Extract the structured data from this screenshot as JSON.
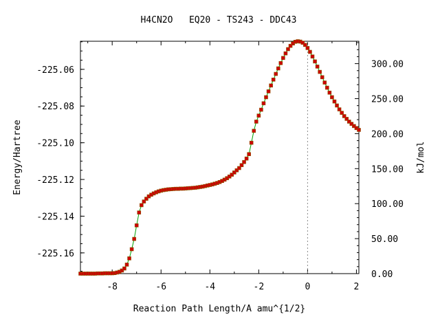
{
  "chart_data": {
    "type": "line",
    "title": "H4CN2O   EQ20 - TS243 - DDC43",
    "xlabel": "Reaction Path Length/A amu^{1/2}",
    "ylabel": "Energy/Hartree",
    "y2label": "kJ/mol",
    "xlim": [
      -9.3,
      2.1
    ],
    "ylim": [
      -225.1713,
      -225.0447
    ],
    "y2lim": [
      0,
      332
    ],
    "x_ticks": [
      "-8",
      "-6",
      "-4",
      "-2",
      "0",
      "2"
    ],
    "x_tick_values": [
      -8,
      -6,
      -4,
      -2,
      0,
      2
    ],
    "y_ticks": [
      "-225.06",
      "-225.08",
      "-225.10",
      "-225.12",
      "-225.14",
      "-225.16"
    ],
    "y_tick_values": [
      -225.06,
      -225.08,
      -225.1,
      -225.12,
      -225.14,
      -225.16
    ],
    "y2_ticks": [
      "300.00",
      "250.00",
      "200.00",
      "150.00",
      "100.00",
      "50.00",
      "0.00"
    ],
    "y2_tick_values": [
      300,
      250,
      200,
      150,
      100,
      50,
      0
    ],
    "vline_x": 0,
    "grid": false,
    "line_color": "#00a000",
    "marker_color": "#cc0000",
    "marker_edge": "#8a5a00",
    "series": [
      {
        "x": [
          -9.3,
          -9.2,
          -9.1,
          -9.0,
          -8.9,
          -8.8,
          -8.7,
          -8.6,
          -8.5,
          -8.4,
          -8.3,
          -8.2,
          -8.1,
          -8.0,
          -7.9,
          -7.8,
          -7.7,
          -7.6,
          -7.5,
          -7.4,
          -7.3,
          -7.2,
          -7.1,
          -7.0,
          -6.9,
          -6.8,
          -6.7,
          -6.6,
          -6.5,
          -6.4,
          -6.3,
          -6.2,
          -6.1,
          -6.0,
          -5.9,
          -5.8,
          -5.7,
          -5.6,
          -5.5,
          -5.4,
          -5.3,
          -5.2,
          -5.1,
          -5.0,
          -4.9,
          -4.8,
          -4.7,
          -4.6,
          -4.5,
          -4.4,
          -4.3,
          -4.2,
          -4.1,
          -4.0,
          -3.9,
          -3.8,
          -3.7,
          -3.6,
          -3.5,
          -3.4,
          -3.3,
          -3.2,
          -3.1,
          -3.0,
          -2.9,
          -2.8,
          -2.7,
          -2.6,
          -2.5,
          -2.4,
          -2.3,
          -2.2,
          -2.1,
          -2.0,
          -1.9,
          -1.8,
          -1.7,
          -1.6,
          -1.5,
          -1.4,
          -1.3,
          -1.2,
          -1.1,
          -1.0,
          -0.9,
          -0.8,
          -0.7,
          -0.6,
          -0.5,
          -0.4,
          -0.3,
          -0.2,
          -0.1,
          0.0,
          0.1,
          0.2,
          0.3,
          0.4,
          0.5,
          0.6,
          0.7,
          0.8,
          0.9,
          1.0,
          1.1,
          1.2,
          1.3,
          1.4,
          1.5,
          1.6,
          1.7,
          1.8,
          1.9,
          2.0,
          2.1
        ],
        "y": [
          -225.1713,
          -225.1713,
          -225.1713,
          -225.1713,
          -225.1713,
          -225.1713,
          -225.1713,
          -225.1712,
          -225.1712,
          -225.1712,
          -225.1711,
          -225.1711,
          -225.1711,
          -225.1711,
          -225.171,
          -225.1707,
          -225.1703,
          -225.1696,
          -225.1685,
          -225.1664,
          -225.163,
          -225.158,
          -225.1524,
          -225.145,
          -225.138,
          -225.134,
          -225.132,
          -225.1305,
          -225.1292,
          -225.1283,
          -225.1276,
          -225.127,
          -225.1265,
          -225.1261,
          -225.1258,
          -225.1256,
          -225.1254,
          -225.1253,
          -225.1252,
          -225.1251,
          -225.1251,
          -225.125,
          -225.125,
          -225.1249,
          -225.1248,
          -225.1247,
          -225.1246,
          -225.1245,
          -225.1243,
          -225.1241,
          -225.1239,
          -225.1236,
          -225.1233,
          -225.123,
          -225.1227,
          -225.1223,
          -225.1219,
          -225.1214,
          -225.1208,
          -225.1201,
          -225.1193,
          -225.1184,
          -225.1174,
          -225.1162,
          -225.115,
          -225.1138,
          -225.1122,
          -225.1105,
          -225.1086,
          -225.1062,
          -225.1,
          -225.0935,
          -225.0885,
          -225.0852,
          -225.082,
          -225.0785,
          -225.0752,
          -225.072,
          -225.0688,
          -225.0656,
          -225.0625,
          -225.0595,
          -225.0566,
          -225.0538,
          -225.0513,
          -225.049,
          -225.0472,
          -225.0459,
          -225.045,
          -225.0447,
          -225.0449,
          -225.0455,
          -225.0467,
          -225.0484,
          -225.0505,
          -225.053,
          -225.0557,
          -225.0585,
          -225.0614,
          -225.0643,
          -225.0672,
          -225.07,
          -225.0727,
          -225.0752,
          -225.0775,
          -225.0797,
          -225.0818,
          -225.0837,
          -225.0855,
          -225.087,
          -225.0885,
          -225.0897,
          -225.0909,
          -225.092,
          -225.093
        ]
      }
    ]
  }
}
